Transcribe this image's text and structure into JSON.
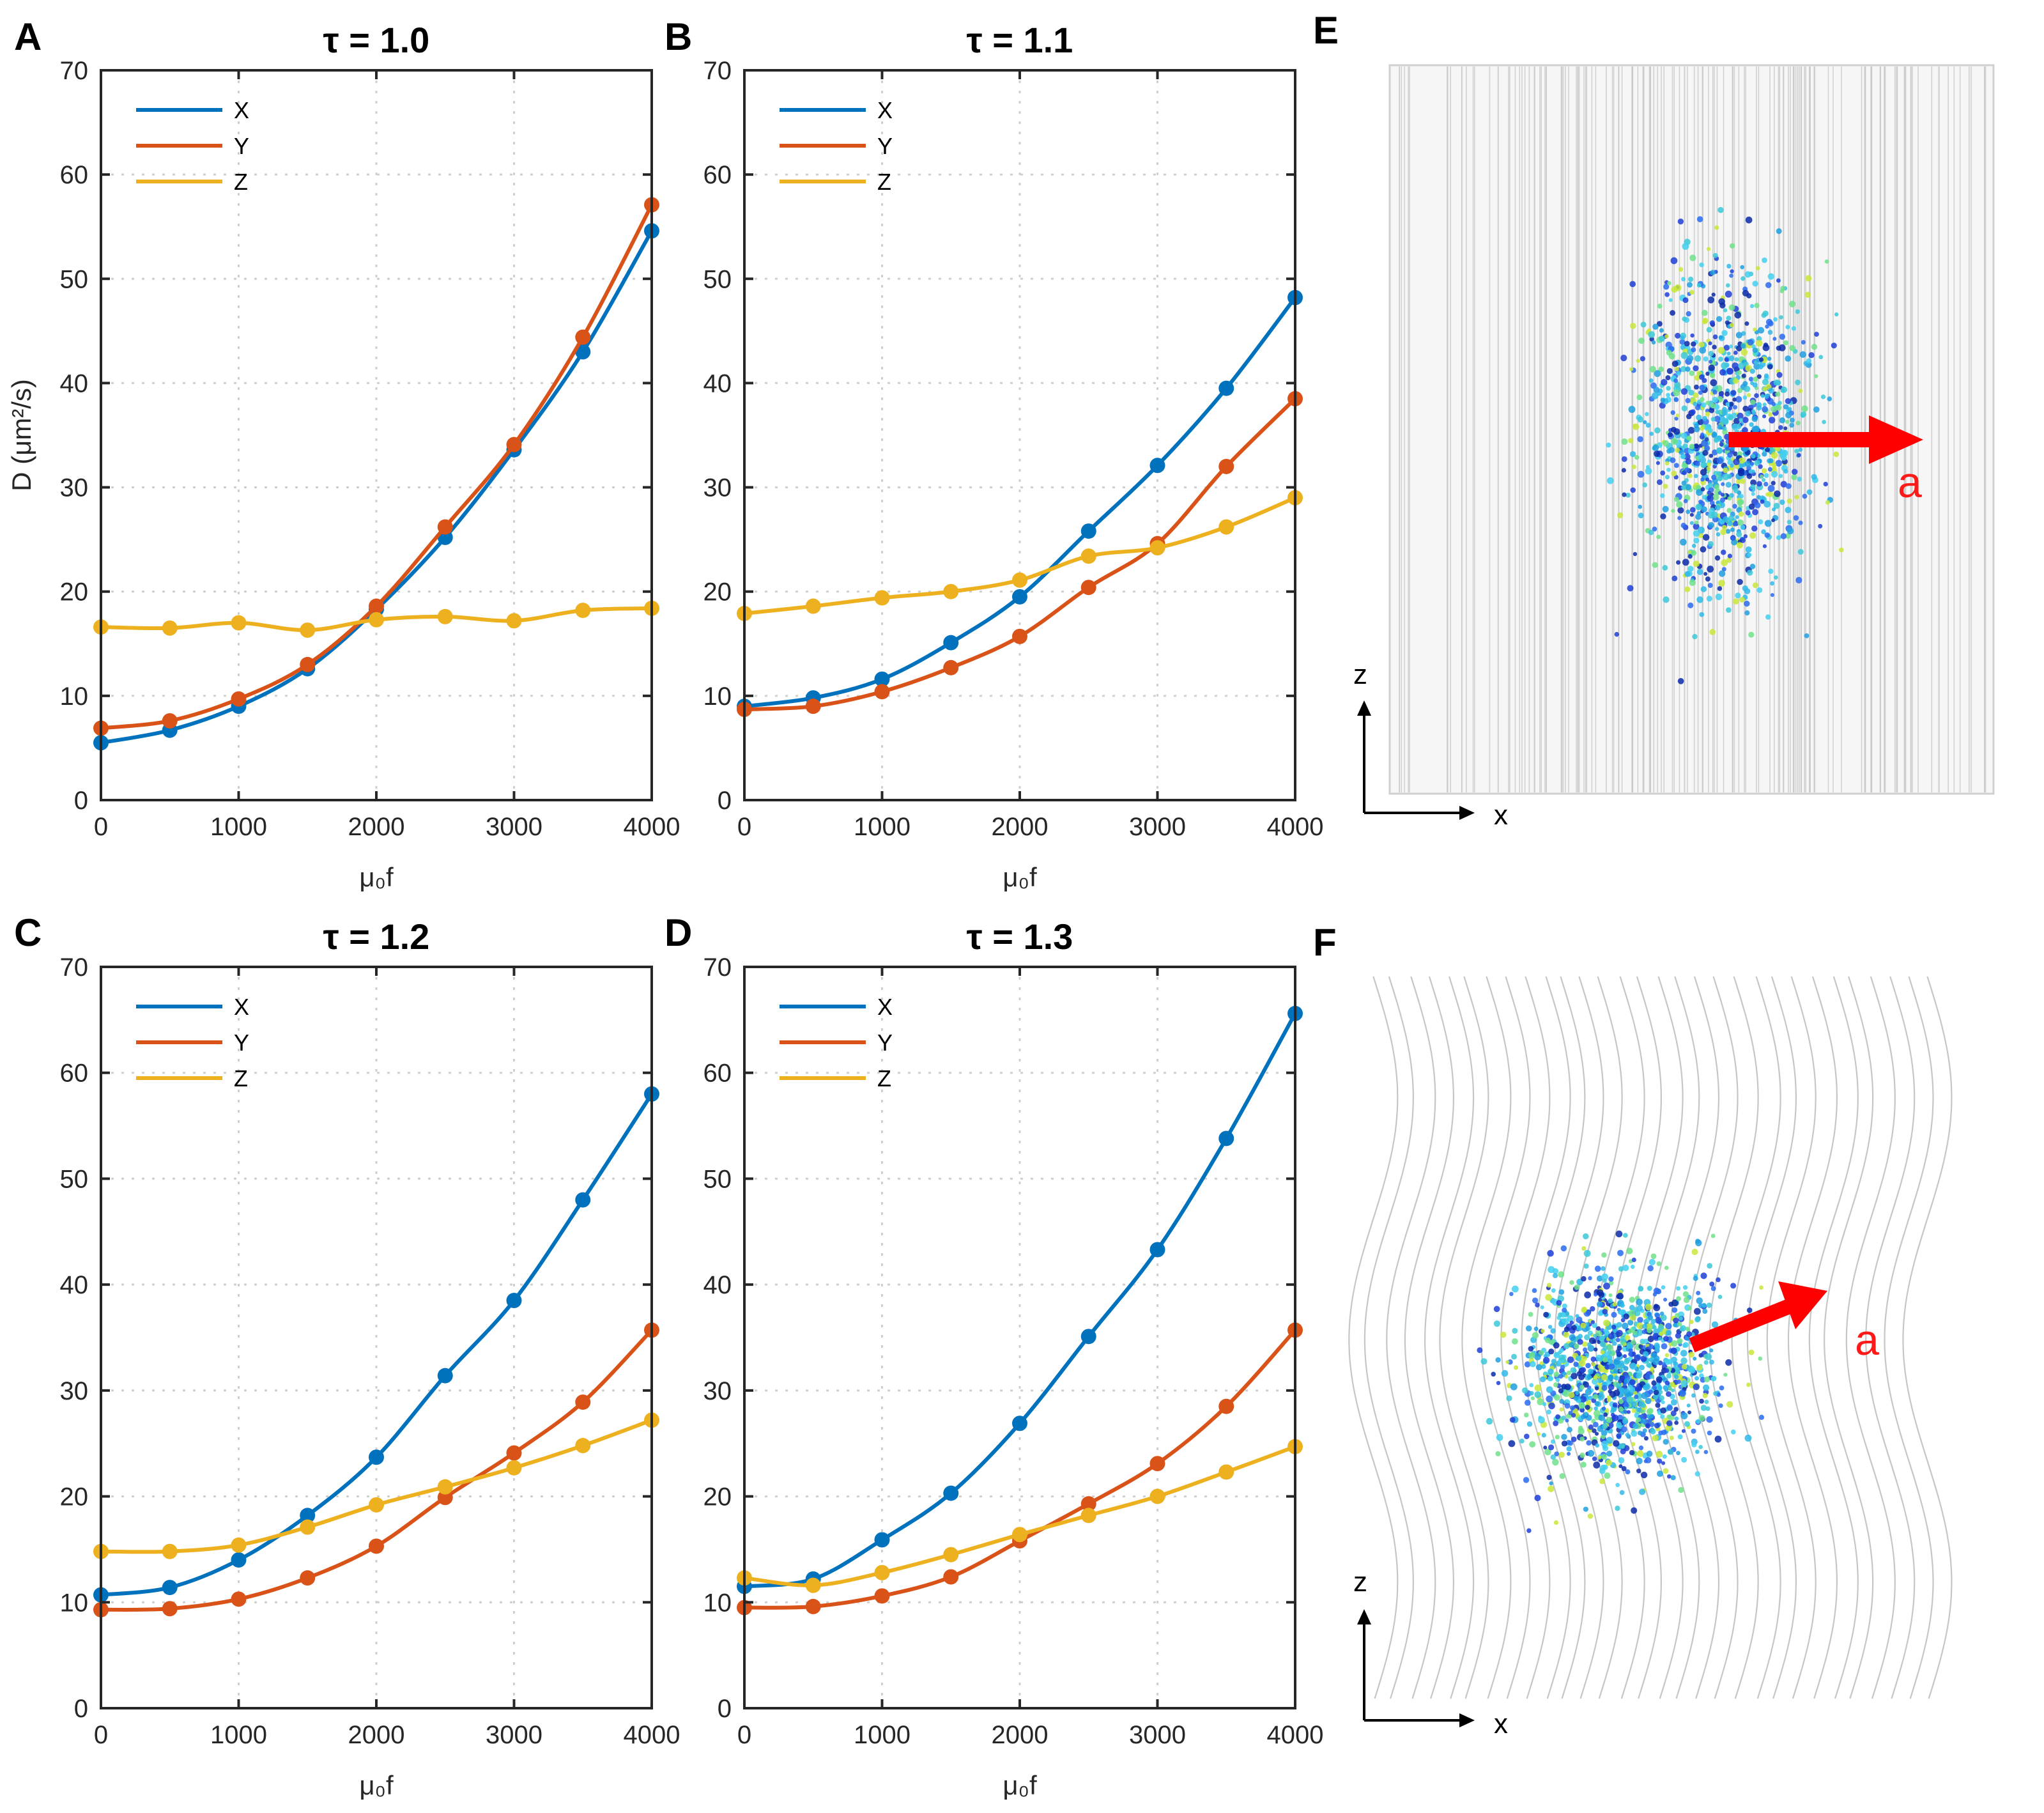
{
  "figure": {
    "panels": [
      {
        "letter": "A",
        "title": "τ = 1.0"
      },
      {
        "letter": "B",
        "title": "τ = 1.1"
      },
      {
        "letter": "C",
        "title": "τ = 1.2"
      },
      {
        "letter": "D",
        "title": "τ = 1.3"
      },
      {
        "letter": "E"
      },
      {
        "letter": "F"
      }
    ],
    "ylabel": "D (μm²/s)",
    "xlabel": "μ₀f",
    "sim_labels": {
      "arrow": "a",
      "axis_z": "z",
      "axis_x": "x"
    },
    "colors": {
      "X": "#0072bd",
      "Y": "#d95319",
      "Z": "#edb120"
    }
  },
  "chart_data": [
    {
      "type": "line",
      "title": "τ = 1.0",
      "xlabel": "μ₀f",
      "ylabel": "D (μm²/s)",
      "x": [
        0,
        500,
        1000,
        1500,
        2000,
        2500,
        3000,
        3500,
        4000
      ],
      "xlim": [
        0,
        4000
      ],
      "ylim": [
        0,
        70
      ],
      "xticks": [
        0,
        1000,
        2000,
        3000,
        4000
      ],
      "yticks": [
        0,
        10,
        20,
        30,
        40,
        50,
        60,
        70
      ],
      "grid": true,
      "legend": "top-left",
      "series": [
        {
          "name": "X",
          "values": [
            5.5,
            6.7,
            9.0,
            12.6,
            18.3,
            25.2,
            33.6,
            43.0,
            54.6
          ]
        },
        {
          "name": "Y",
          "values": [
            6.9,
            7.6,
            9.7,
            13.0,
            18.6,
            26.2,
            34.1,
            44.4,
            57.1
          ]
        },
        {
          "name": "Z",
          "values": [
            16.6,
            16.5,
            17.0,
            16.3,
            17.3,
            17.6,
            17.2,
            18.2,
            18.4
          ]
        }
      ]
    },
    {
      "type": "line",
      "title": "τ = 1.1",
      "xlabel": "μ₀f",
      "ylabel": "",
      "x": [
        0,
        500,
        1000,
        1500,
        2000,
        2500,
        3000,
        3500,
        4000
      ],
      "xlim": [
        0,
        4000
      ],
      "ylim": [
        0,
        70
      ],
      "xticks": [
        0,
        1000,
        2000,
        3000,
        4000
      ],
      "yticks": [
        0,
        10,
        20,
        30,
        40,
        50,
        60,
        70
      ],
      "grid": true,
      "legend": "top-left",
      "series": [
        {
          "name": "X",
          "values": [
            9.0,
            9.8,
            11.6,
            15.1,
            19.5,
            25.8,
            32.1,
            39.5,
            48.2
          ]
        },
        {
          "name": "Y",
          "values": [
            8.7,
            9.0,
            10.4,
            12.7,
            15.7,
            20.4,
            24.6,
            32.0,
            38.5
          ]
        },
        {
          "name": "Z",
          "values": [
            17.9,
            18.6,
            19.4,
            20.0,
            21.1,
            23.4,
            24.2,
            26.2,
            29.0
          ]
        }
      ]
    },
    {
      "type": "line",
      "title": "τ = 1.2",
      "xlabel": "μ₀f",
      "ylabel": "",
      "x": [
        0,
        500,
        1000,
        1500,
        2000,
        2500,
        3000,
        3500,
        4000
      ],
      "xlim": [
        0,
        4000
      ],
      "ylim": [
        0,
        70
      ],
      "xticks": [
        0,
        1000,
        2000,
        3000,
        4000
      ],
      "yticks": [
        0,
        10,
        20,
        30,
        40,
        50,
        60,
        70
      ],
      "grid": true,
      "legend": "top-left",
      "series": [
        {
          "name": "X",
          "values": [
            10.7,
            11.4,
            14.0,
            18.2,
            23.7,
            31.4,
            38.5,
            48.0,
            58.0
          ]
        },
        {
          "name": "Y",
          "values": [
            9.3,
            9.4,
            10.3,
            12.3,
            15.3,
            19.9,
            24.1,
            28.9,
            35.7
          ]
        },
        {
          "name": "Z",
          "values": [
            14.8,
            14.8,
            15.4,
            17.1,
            19.2,
            20.9,
            22.7,
            24.8,
            27.2
          ]
        }
      ]
    },
    {
      "type": "line",
      "title": "τ = 1.3",
      "xlabel": "μ₀f",
      "ylabel": "",
      "x": [
        0,
        500,
        1000,
        1500,
        2000,
        2500,
        3000,
        3500,
        4000
      ],
      "xlim": [
        0,
        4000
      ],
      "ylim": [
        0,
        70
      ],
      "xticks": [
        0,
        1000,
        2000,
        3000,
        4000
      ],
      "yticks": [
        0,
        10,
        20,
        30,
        40,
        50,
        60,
        70
      ],
      "grid": true,
      "legend": "top-left",
      "series": [
        {
          "name": "X",
          "values": [
            11.5,
            12.2,
            15.9,
            20.3,
            26.9,
            35.1,
            43.3,
            53.8,
            65.6
          ]
        },
        {
          "name": "Y",
          "values": [
            9.5,
            9.6,
            10.6,
            12.4,
            15.8,
            19.3,
            23.1,
            28.5,
            35.7
          ]
        },
        {
          "name": "Z",
          "values": [
            12.3,
            11.6,
            12.8,
            14.5,
            16.4,
            18.2,
            20.0,
            22.3,
            24.7
          ]
        }
      ]
    }
  ]
}
